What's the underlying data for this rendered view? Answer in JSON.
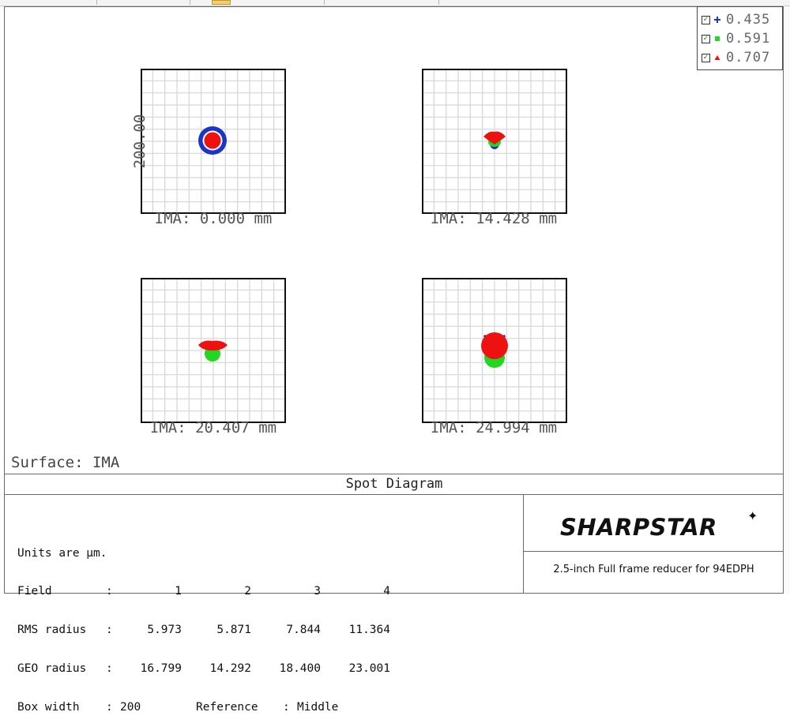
{
  "legend": [
    {
      "value": "0.435",
      "color": "#1a35c8",
      "marker": "plus-icon"
    },
    {
      "value": "0.591",
      "color": "#22d622",
      "marker": "square-icon"
    },
    {
      "value": "0.707",
      "color": "#ee1111",
      "marker": "triangle-icon"
    }
  ],
  "plots": {
    "y_axis_label": "200.00",
    "fields": [
      {
        "ima_label": "IMA: 0.000 mm",
        "marker_colors": [
          "#1a35c8",
          "#ffffff",
          "#ee1111"
        ]
      },
      {
        "ima_label": "IMA: 14.428 mm",
        "marker_colors": [
          "#1a35c8",
          "#22d622",
          "#ee1111"
        ]
      },
      {
        "ima_label": "IMA: 20.407 mm",
        "marker_colors": [
          "#1a35c8",
          "#22d622",
          "#ee1111"
        ]
      },
      {
        "ima_label": "IMA: 24.994 mm",
        "marker_colors": [
          "#1a35c8",
          "#22d622",
          "#ee1111"
        ]
      }
    ]
  },
  "surface_label": "Surface: IMA",
  "diagram_title": "Spot Diagram",
  "info": {
    "units": "Units are µm.",
    "field_label": "Field",
    "fields": [
      "1",
      "2",
      "3",
      "4"
    ],
    "rms_label": "RMS radius",
    "rms": [
      "5.973",
      "5.871",
      "7.844",
      "11.364"
    ],
    "geo_label": "GEO radius",
    "geo": [
      "16.799",
      "14.292",
      "18.400",
      "23.001"
    ],
    "box_width_label": "Box width",
    "box_width": "200",
    "reference_label": "Reference",
    "reference": "Middle"
  },
  "brand": {
    "logo_text": "SHARPSTAR",
    "subtitle": "2.5-inch Full frame reducer for 94EDPH"
  }
}
